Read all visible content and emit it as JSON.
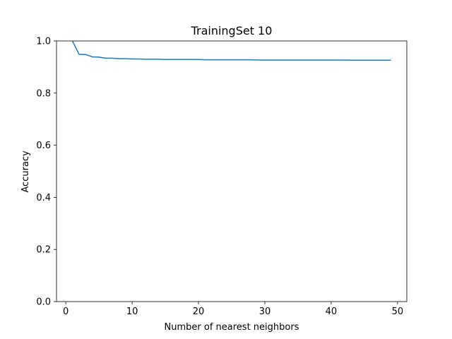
{
  "chart_data": {
    "type": "line",
    "title": "TrainingSet 10",
    "xlabel": "Number of nearest neighbors",
    "ylabel": "Accuracy",
    "xlim": [
      -1.4,
      51.4
    ],
    "ylim": [
      0.0,
      1.0
    ],
    "xticks": [
      0,
      10,
      20,
      30,
      40,
      50
    ],
    "yticks": [
      0.0,
      0.2,
      0.4,
      0.6,
      0.8,
      1.0
    ],
    "xtick_labels": [
      "0",
      "10",
      "20",
      "30",
      "40",
      "50"
    ],
    "ytick_labels": [
      "0.0",
      "0.2",
      "0.4",
      "0.6",
      "0.8",
      "1.0"
    ],
    "grid": false,
    "legend": "none",
    "series": [
      {
        "color": "#1f77b4",
        "x": [
          1,
          2,
          3,
          4,
          5,
          6,
          7,
          8,
          9,
          10,
          11,
          12,
          13,
          14,
          15,
          16,
          17,
          18,
          19,
          20,
          21,
          22,
          23,
          24,
          25,
          26,
          27,
          28,
          29,
          30,
          31,
          32,
          33,
          34,
          35,
          36,
          37,
          38,
          39,
          40,
          41,
          42,
          43,
          44,
          45,
          46,
          47,
          48,
          49
        ],
        "values": [
          1.0,
          0.949,
          0.948,
          0.939,
          0.938,
          0.934,
          0.934,
          0.932,
          0.932,
          0.931,
          0.931,
          0.93,
          0.93,
          0.93,
          0.929,
          0.929,
          0.929,
          0.929,
          0.929,
          0.929,
          0.928,
          0.928,
          0.928,
          0.928,
          0.928,
          0.928,
          0.928,
          0.928,
          0.927,
          0.927,
          0.927,
          0.927,
          0.927,
          0.927,
          0.927,
          0.927,
          0.927,
          0.927,
          0.927,
          0.927,
          0.927,
          0.927,
          0.926,
          0.926,
          0.926,
          0.926,
          0.926,
          0.926,
          0.926
        ]
      }
    ]
  }
}
